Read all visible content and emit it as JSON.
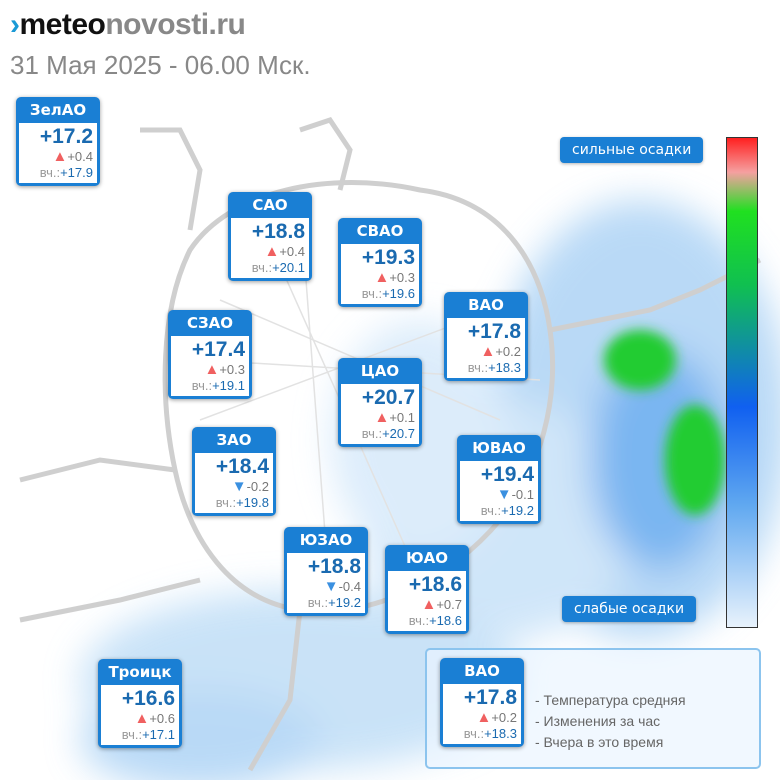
{
  "header": {
    "logo_dark": "meteo",
    "logo_gray": "novosti.ru",
    "date": "31 Мая 2025 - 06.00 Мск."
  },
  "districts": [
    {
      "name": "ЗелАО",
      "temp": "+17.2",
      "trend": "up",
      "change": "+0.4",
      "yesterday_label": "вч.:",
      "yesterday": "+17.9"
    },
    {
      "name": "САО",
      "temp": "+18.8",
      "trend": "up",
      "change": "+0.4",
      "yesterday_label": "вч.:",
      "yesterday": "+20.1"
    },
    {
      "name": "СВАО",
      "temp": "+19.3",
      "trend": "up",
      "change": "+0.3",
      "yesterday_label": "вч.:",
      "yesterday": "+19.6"
    },
    {
      "name": "ВАО",
      "temp": "+17.8",
      "trend": "up",
      "change": "+0.2",
      "yesterday_label": "вч.:",
      "yesterday": "+18.3"
    },
    {
      "name": "СЗАО",
      "temp": "+17.4",
      "trend": "up",
      "change": "+0.3",
      "yesterday_label": "вч.:",
      "yesterday": "+19.1"
    },
    {
      "name": "ЦАО",
      "temp": "+20.7",
      "trend": "up",
      "change": "+0.1",
      "yesterday_label": "вч.:",
      "yesterday": "+20.7"
    },
    {
      "name": "ЗАО",
      "temp": "+18.4",
      "trend": "down",
      "change": "-0.2",
      "yesterday_label": "вч.:",
      "yesterday": "+19.8"
    },
    {
      "name": "ЮВАО",
      "temp": "+19.4",
      "trend": "down",
      "change": "-0.1",
      "yesterday_label": "вч.:",
      "yesterday": "+19.2"
    },
    {
      "name": "ЮЗАО",
      "temp": "+18.8",
      "trend": "down",
      "change": "-0.4",
      "yesterday_label": "вч.:",
      "yesterday": "+19.2"
    },
    {
      "name": "ЮАО",
      "temp": "+18.6",
      "trend": "up",
      "change": "+0.7",
      "yesterday_label": "вч.:",
      "yesterday": "+18.6"
    },
    {
      "name": "Троицк",
      "temp": "+16.6",
      "trend": "up",
      "change": "+0.6",
      "yesterday_label": "вч.:",
      "yesterday": "+17.1"
    }
  ],
  "scale": {
    "top_label": "сильные осадки",
    "bottom_label": "слабые осадки"
  },
  "legend": {
    "sample": {
      "name": "ВАО",
      "temp": "+17.8",
      "trend": "up",
      "change": "+0.2",
      "yesterday_label": "вч.:",
      "yesterday": "+18.3"
    },
    "lines": [
      "- Температура средняя",
      "- Изменения за час",
      "- Вчера в это время"
    ]
  }
}
